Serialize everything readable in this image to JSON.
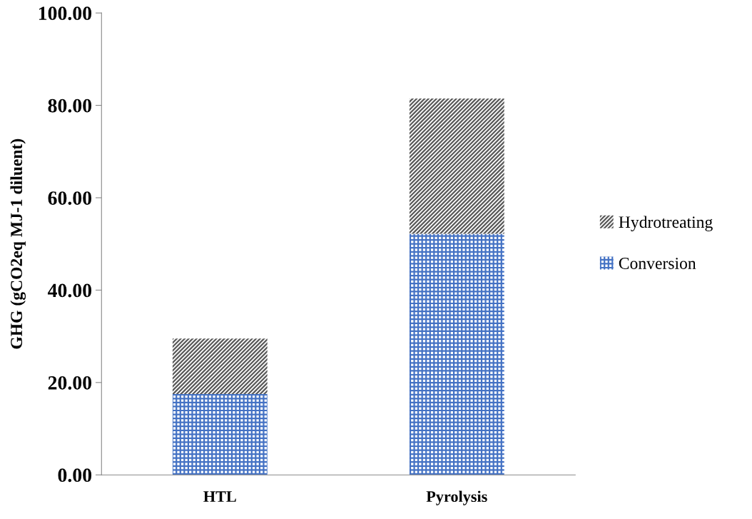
{
  "chart_data": {
    "type": "bar",
    "stacked": true,
    "ylabel": "GHG (gCO2eq MJ-1 diluent)",
    "categories": [
      "HTL",
      "Pyrolysis"
    ],
    "series": [
      {
        "name": "Conversion",
        "color": "#4472c4",
        "values": [
          17.5,
          52.2
        ]
      },
      {
        "name": "Hydrotreating",
        "color": "#595959",
        "values": [
          12.0,
          29.3
        ]
      }
    ],
    "ylim": [
      0,
      100
    ],
    "yticks": [
      {
        "value": 0,
        "label": "0.00"
      },
      {
        "value": 20,
        "label": "20.00"
      },
      {
        "value": 40,
        "label": "40.00"
      },
      {
        "value": 60,
        "label": "60.00"
      },
      {
        "value": 80,
        "label": "80.00"
      },
      {
        "value": 100,
        "label": "100.00"
      }
    ],
    "grid": false,
    "legend": "right"
  }
}
